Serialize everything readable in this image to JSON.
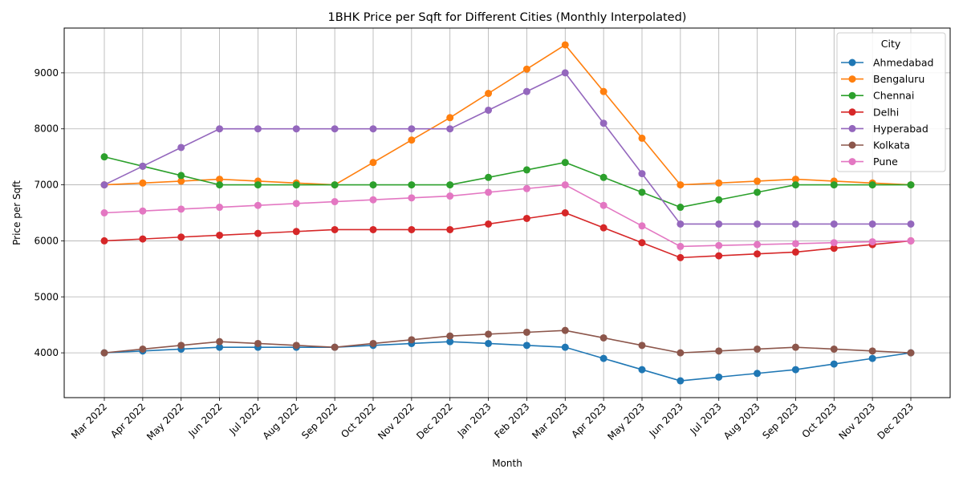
{
  "chart_data": {
    "type": "line",
    "title": "1BHK Price per Sqft for Different Cities (Monthly Interpolated)",
    "xlabel": "Month",
    "ylabel": "Price per Sqft",
    "categories": [
      "Mar 2022",
      "Apr 2022",
      "May 2022",
      "Jun 2022",
      "Jul 2022",
      "Aug 2022",
      "Sep 2022",
      "Oct 2022",
      "Nov 2022",
      "Dec 2022",
      "Jan 2023",
      "Feb 2023",
      "Mar 2023",
      "Apr 2023",
      "May 2023",
      "Jun 2023",
      "Jul 2023",
      "Aug 2023",
      "Sep 2023",
      "Oct 2023",
      "Nov 2023",
      "Dec 2023"
    ],
    "ylim": [
      3200,
      9800
    ],
    "yticks": [
      4000,
      5000,
      6000,
      7000,
      8000,
      9000
    ],
    "grid": true,
    "legend_title": "City",
    "legend_position": "top-right",
    "series": [
      {
        "name": "Ahmedabad",
        "color": "#1f77b4",
        "values": [
          4000,
          4033,
          4067,
          4100,
          4100,
          4100,
          4100,
          4133,
          4167,
          4200,
          4167,
          4133,
          4100,
          3900,
          3700,
          3500,
          3567,
          3633,
          3700,
          3800,
          3900,
          4000
        ]
      },
      {
        "name": "Bengaluru",
        "color": "#ff7f0e",
        "values": [
          7000,
          7033,
          7067,
          7100,
          7067,
          7033,
          7000,
          7400,
          7800,
          8200,
          8633,
          9067,
          9500,
          8667,
          7833,
          7000,
          7033,
          7067,
          7100,
          7067,
          7033,
          7000
        ]
      },
      {
        "name": "Chennai",
        "color": "#2ca02c",
        "values": [
          7500,
          7333,
          7167,
          7000,
          7000,
          7000,
          7000,
          7000,
          7000,
          7000,
          7133,
          7267,
          7400,
          7133,
          6867,
          6600,
          6733,
          6867,
          7000,
          7000,
          7000,
          7000
        ]
      },
      {
        "name": "Delhi",
        "color": "#d62728",
        "values": [
          6000,
          6033,
          6067,
          6100,
          6133,
          6167,
          6200,
          6200,
          6200,
          6200,
          6300,
          6400,
          6500,
          6233,
          5967,
          5700,
          5733,
          5767,
          5800,
          5867,
          5933,
          6000
        ]
      },
      {
        "name": "Hyperabad",
        "color": "#9467bd",
        "values": [
          7000,
          7333,
          7667,
          8000,
          8000,
          8000,
          8000,
          8000,
          8000,
          8000,
          8333,
          8667,
          9000,
          8100,
          7200,
          6300,
          6300,
          6300,
          6300,
          6300,
          6300,
          6300
        ]
      },
      {
        "name": "Kolkata",
        "color": "#8c564b",
        "values": [
          4000,
          4067,
          4133,
          4200,
          4167,
          4133,
          4100,
          4167,
          4233,
          4300,
          4333,
          4367,
          4400,
          4267,
          4133,
          4000,
          4033,
          4067,
          4100,
          4067,
          4033,
          4000
        ]
      },
      {
        "name": "Pune",
        "color": "#e377c2",
        "values": [
          6500,
          6533,
          6567,
          6600,
          6633,
          6667,
          6700,
          6733,
          6767,
          6800,
          6867,
          6933,
          7000,
          6633,
          6267,
          5900,
          5917,
          5933,
          5950,
          5967,
          5983,
          6000
        ]
      }
    ]
  }
}
